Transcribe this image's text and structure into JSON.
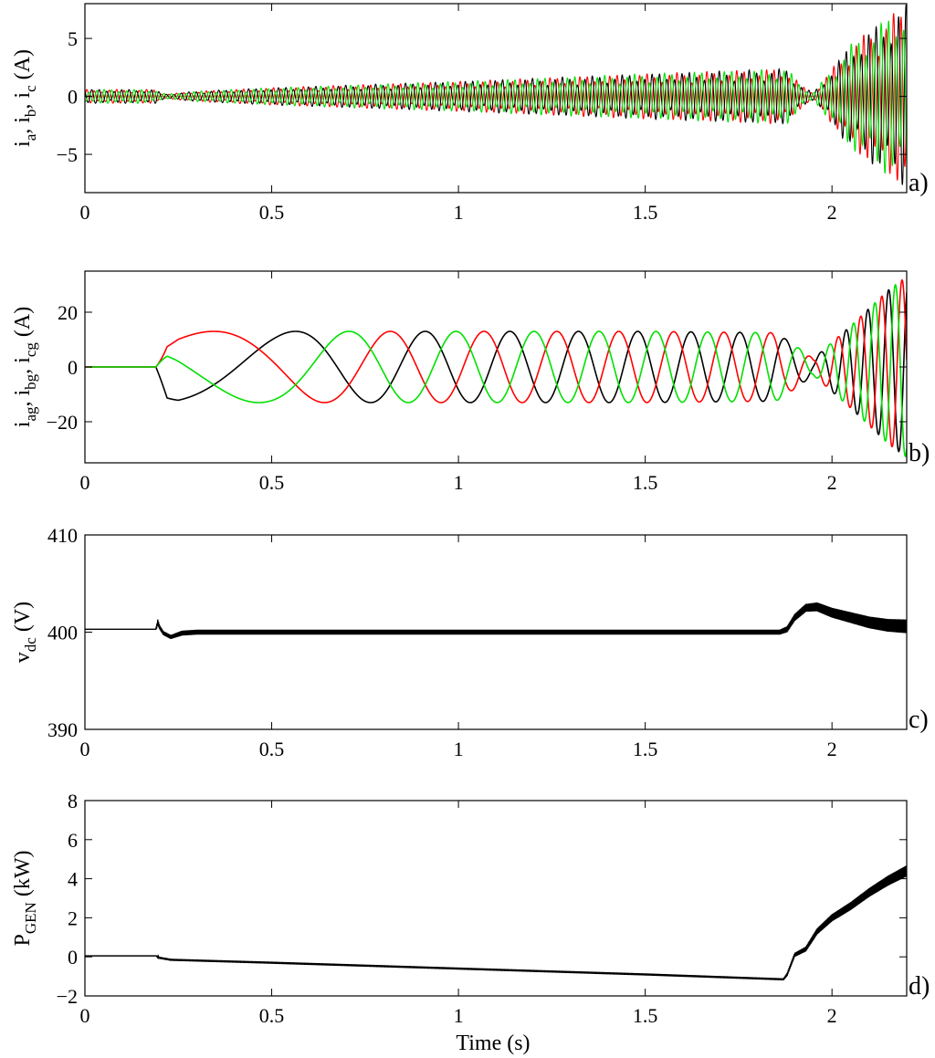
{
  "figure": {
    "xlabel": "Time (s)",
    "xtick_labels": [
      "0",
      "0.5",
      "1",
      "1.5",
      "2"
    ]
  },
  "chart_data": [
    {
      "type": "line",
      "panel": "a)",
      "title": "",
      "ylabel_parts": [
        [
          "i",
          "a"
        ],
        [
          "i",
          "b"
        ],
        [
          "i",
          "c"
        ]
      ],
      "ylabel_unit": "(A)",
      "xlim": [
        0,
        2.2
      ],
      "ylim": [
        -8.3,
        8
      ],
      "xticks": [
        0,
        0.5,
        1,
        1.5,
        2
      ],
      "yticks": [
        -5,
        0,
        5
      ],
      "ytick_labels": [
        "−5",
        "0",
        "5"
      ],
      "grid": false,
      "legend": "none",
      "series": [
        {
          "color": "#ff0000",
          "phase_deg": 0
        },
        {
          "color": "#000000",
          "phase_deg": 120
        },
        {
          "color": "#00e000",
          "phase_deg": 240
        }
      ],
      "envelope": {
        "t": [
          0,
          0.19,
          0.2,
          0.22,
          0.25,
          0.3,
          0.5,
          1.0,
          1.5,
          1.88,
          1.92,
          1.95,
          2.05,
          2.2
        ],
        "amplitude": [
          0.6,
          0.6,
          0.35,
          0.2,
          0.3,
          0.45,
          0.75,
          1.3,
          1.95,
          2.4,
          0.9,
          0.3,
          4.5,
          8.0
        ]
      }
    },
    {
      "type": "line",
      "panel": "b)",
      "title": "",
      "ylabel_parts": [
        [
          "i",
          "ag"
        ],
        [
          "i",
          "bg"
        ],
        [
          "i",
          "cg"
        ]
      ],
      "ylabel_unit": "(A)",
      "xlim": [
        0,
        2.2
      ],
      "ylim": [
        -35,
        35
      ],
      "xticks": [
        0,
        0.5,
        1,
        1.5,
        2
      ],
      "yticks": [
        -20,
        0,
        20
      ],
      "ytick_labels": [
        "−20",
        "0",
        "20"
      ],
      "grid": false,
      "legend": "none",
      "start_time": 0.19,
      "amplitude": {
        "t": [
          0.19,
          0.25,
          0.6,
          1.0,
          1.5,
          1.85,
          1.9,
          1.95,
          2.05,
          2.15,
          2.2
        ],
        "value": [
          10,
          13,
          13,
          13,
          13,
          12.5,
          8,
          3,
          15,
          28,
          33
        ]
      },
      "frequency_hz": {
        "t": [
          0.19,
          0.5,
          1.0,
          1.5,
          1.88,
          1.95,
          2.05,
          2.2
        ],
        "value": [
          0.9,
          1.6,
          4.3,
          6.8,
          8.5,
          12,
          17,
          19
        ]
      },
      "series": [
        {
          "color": "#000000",
          "phase_deg": 270
        },
        {
          "color": "#ff0000",
          "phase_deg": 30
        },
        {
          "color": "#00e000",
          "phase_deg": 150
        }
      ]
    },
    {
      "type": "line",
      "panel": "c)",
      "title": "",
      "ylabel_parts": [
        [
          "v",
          "dc"
        ]
      ],
      "ylabel_unit": "(V)",
      "xlim": [
        0,
        2.2
      ],
      "ylim": [
        390,
        410
      ],
      "xticks": [
        0,
        0.5,
        1,
        1.5,
        2
      ],
      "yticks": [
        390,
        400,
        410
      ],
      "ytick_labels": [
        "390",
        "400",
        "410"
      ],
      "grid": false,
      "legend": "none",
      "series": [
        {
          "color": "#000000",
          "x": [
            0,
            0.19,
            0.195,
            0.2,
            0.21,
            0.23,
            0.26,
            0.3,
            0.5,
            1.0,
            1.5,
            1.86,
            1.88,
            1.9,
            1.93,
            1.96,
            2.0,
            2.05,
            2.1,
            2.15,
            2.2
          ],
          "y": [
            400.3,
            400.3,
            401.0,
            400.5,
            399.9,
            399.5,
            399.9,
            400.0,
            400.0,
            400.0,
            400.0,
            400.0,
            400.3,
            401.5,
            402.5,
            402.6,
            402.0,
            401.5,
            401.0,
            400.7,
            400.6
          ],
          "ripple": [
            0,
            0,
            0.3,
            0.2,
            0.2,
            0.2,
            0.25,
            0.25,
            0.25,
            0.25,
            0.25,
            0.25,
            0.3,
            0.35,
            0.4,
            0.45,
            0.5,
            0.55,
            0.6,
            0.65,
            0.7
          ]
        }
      ]
    },
    {
      "type": "line",
      "panel": "d)",
      "title": "",
      "ylabel_parts": [
        [
          "P",
          "GEN"
        ]
      ],
      "ylabel_unit": "(kW)",
      "xlim": [
        0,
        2.2
      ],
      "ylim": [
        -2,
        8
      ],
      "xticks": [
        0,
        0.5,
        1,
        1.5,
        2
      ],
      "yticks": [
        -2,
        0,
        2,
        4,
        6,
        8
      ],
      "ytick_labels": [
        "−2",
        "0",
        "2",
        "4",
        "6",
        "8"
      ],
      "grid": false,
      "legend": "none",
      "series": [
        {
          "color": "#000000",
          "x": [
            0,
            0.19,
            0.2,
            0.23,
            0.5,
            1.0,
            1.5,
            1.87,
            1.88,
            1.9,
            1.93,
            1.96,
            2.0,
            2.05,
            2.1,
            2.15,
            2.2
          ],
          "y": [
            0.05,
            0.05,
            -0.05,
            -0.15,
            -0.3,
            -0.6,
            -0.9,
            -1.15,
            -0.9,
            0.1,
            0.4,
            1.3,
            2.0,
            2.6,
            3.3,
            3.9,
            4.4
          ],
          "ripple": [
            0,
            0,
            0.05,
            0.05,
            0.05,
            0.05,
            0.05,
            0.05,
            0.08,
            0.1,
            0.12,
            0.15,
            0.18,
            0.2,
            0.22,
            0.25,
            0.28
          ]
        }
      ]
    }
  ]
}
